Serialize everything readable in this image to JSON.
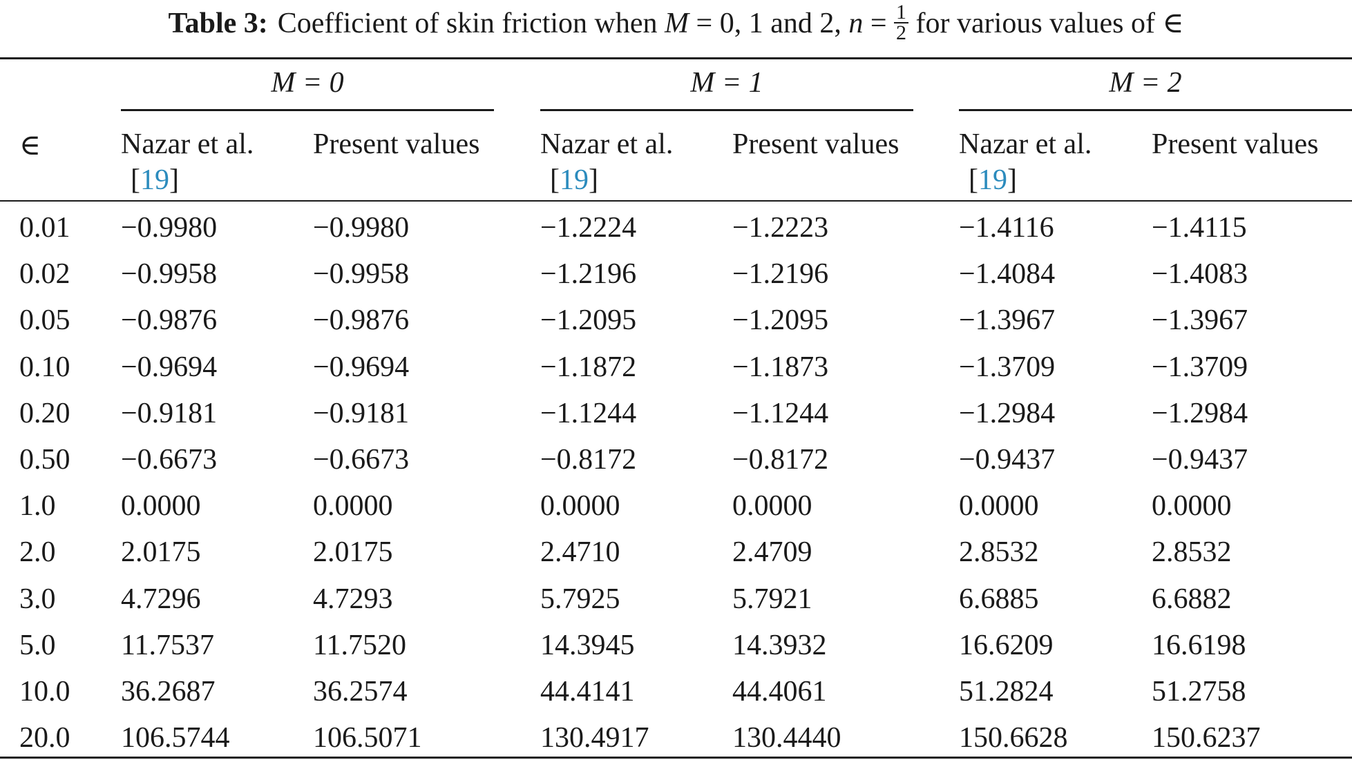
{
  "caption": {
    "label": "Table 3:",
    "text_before_M": "Coefficient of skin friction when ",
    "M_symbol": "M",
    "text_mid": " = 0, 1 and 2, ",
    "n_symbol": "n",
    "equals": " = ",
    "frac_num": "1",
    "frac_den": "2",
    "text_after": " for various values of ∈"
  },
  "header": {
    "epsilon": "∈",
    "groups": [
      "M = 0",
      "M = 1",
      "M = 2"
    ],
    "nazar": "Nazar et al.",
    "ref_open": "[",
    "ref_num": "19",
    "ref_close": "]",
    "present": "Present values"
  },
  "rows": [
    [
      "0.01",
      "−0.9980",
      "−0.9980",
      "−1.2224",
      "−1.2223",
      "−1.4116",
      "−1.4115"
    ],
    [
      "0.02",
      "−0.9958",
      "−0.9958",
      "−1.2196",
      "−1.2196",
      "−1.4084",
      "−1.4083"
    ],
    [
      "0.05",
      "−0.9876",
      "−0.9876",
      "−1.2095",
      "−1.2095",
      "−1.3967",
      "−1.3967"
    ],
    [
      "0.10",
      "−0.9694",
      "−0.9694",
      "−1.1872",
      "−1.1873",
      "−1.3709",
      "−1.3709"
    ],
    [
      "0.20",
      "−0.9181",
      "−0.9181",
      "−1.1244",
      "−1.1244",
      "−1.2984",
      "−1.2984"
    ],
    [
      "0.50",
      "−0.6673",
      "−0.6673",
      "−0.8172",
      "−0.8172",
      "−0.9437",
      "−0.9437"
    ],
    [
      "1.0",
      "0.0000",
      "0.0000",
      "0.0000",
      "0.0000",
      "0.0000",
      "0.0000"
    ],
    [
      "2.0",
      "2.0175",
      "2.0175",
      "2.4710",
      "2.4709",
      "2.8532",
      "2.8532"
    ],
    [
      "3.0",
      "4.7296",
      "4.7293",
      "5.7925",
      "5.7921",
      "6.6885",
      "6.6882"
    ],
    [
      "5.0",
      "11.7537",
      "11.7520",
      "14.3945",
      "14.3932",
      "16.6209",
      "16.6198"
    ],
    [
      "10.0",
      "36.2687",
      "36.2574",
      "44.4141",
      "44.4061",
      "51.2824",
      "51.2758"
    ],
    [
      "20.0",
      "106.5744",
      "106.5071",
      "130.4917",
      "130.4440",
      "150.6628",
      "150.6237"
    ]
  ]
}
